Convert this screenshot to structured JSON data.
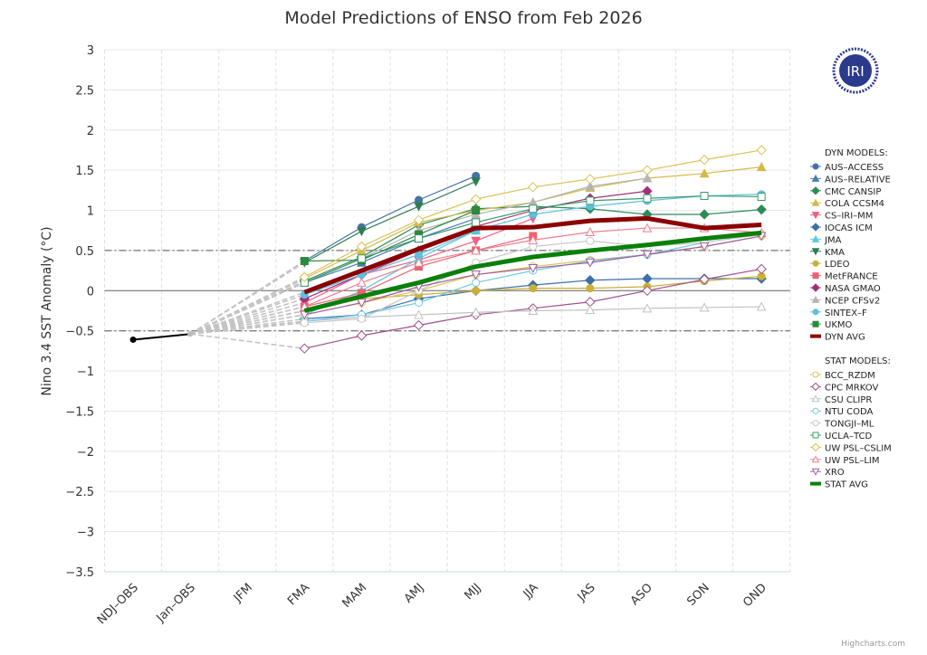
{
  "chart_data": {
    "type": "line",
    "title": "Model Predictions of ENSO from Feb 2026",
    "ylabel": "Nino 3.4 SST Anomaly (°C)",
    "xlabel": "",
    "ylim": [
      -3.5,
      3
    ],
    "yticks": [
      3,
      2.5,
      2,
      1.5,
      1,
      0.5,
      0,
      -0.5,
      -1,
      -1.5,
      -2,
      -2.5,
      -3,
      -3.5
    ],
    "ytick_labels": [
      "3",
      "2.5",
      "2",
      "1.5",
      "1",
      "0.5",
      "0",
      "−0.5",
      "−1",
      "−1.5",
      "−2",
      "−2.5",
      "−3",
      "−3.5"
    ],
    "categories": [
      "NDJ–OBS",
      "Jan–OBS",
      "JFM",
      "FMA",
      "MAM",
      "AMJ",
      "MJJ",
      "JJA",
      "JAS",
      "ASO",
      "SON",
      "OND"
    ],
    "reference_lines": [
      0.5,
      -0.5
    ],
    "grid": true,
    "legend_position": "right",
    "observed": {
      "values": [
        -0.61,
        -0.54
      ],
      "color": "#000000"
    },
    "dyn_header": "DYN MODELS:",
    "stat_header": "STAT MODELS:",
    "dyn_series": [
      {
        "name": "AUS–ACCESS",
        "color": "#4572a7",
        "marker": "circle",
        "filled": true,
        "values": [
          0.37,
          0.79,
          1.13,
          1.43
        ]
      },
      {
        "name": "AUS–RELATIVE",
        "color": "#4a7ab5",
        "marker": "triangle",
        "filled": true,
        "values": [
          0.1,
          0.35,
          0.65,
          0.9
        ]
      },
      {
        "name": "CMC CANSIP",
        "color": "#2e8b57",
        "marker": "diamond",
        "filled": true,
        "values": [
          0.12,
          0.42,
          0.82,
          1.02,
          1.05,
          1.02,
          0.95,
          0.95,
          1.01
        ]
      },
      {
        "name": "COLA CCSM4",
        "color": "#d4b94a",
        "marker": "triangle",
        "filled": true,
        "values": [
          0.15,
          0.5,
          0.85,
          1.0,
          1.1,
          1.28,
          1.4,
          1.46,
          1.54
        ]
      },
      {
        "name": "CS–IRI–MM",
        "color": "#f15c80",
        "marker": "triangle-down",
        "filled": true,
        "values": [
          -0.15,
          0.2,
          0.38,
          0.62,
          0.9
        ]
      },
      {
        "name": "IOCAS ICM",
        "color": "#3d6fa8",
        "marker": "diamond",
        "filled": true,
        "values": [
          -0.35,
          -0.3,
          -0.1,
          0.0,
          0.07,
          0.13,
          0.15,
          0.15,
          0.15
        ]
      },
      {
        "name": "JMA",
        "color": "#5bc8e0",
        "marker": "triangle",
        "filled": true,
        "values": [
          -0.3,
          0.0,
          0.4,
          0.75
        ]
      },
      {
        "name": "KMA",
        "color": "#2e7d4f",
        "marker": "triangle-down",
        "filled": true,
        "values": [
          0.35,
          0.74,
          1.05,
          1.36
        ]
      },
      {
        "name": "LDEO",
        "color": "#c9b037",
        "marker": "circle",
        "filled": true,
        "values": [
          -0.25,
          -0.1,
          -0.05,
          0.0,
          0.03,
          0.03,
          0.05,
          0.12,
          0.18
        ]
      },
      {
        "name": "MetFRANCE",
        "color": "#e8636f",
        "marker": "square",
        "filled": true,
        "values": [
          -0.2,
          -0.03,
          0.3,
          0.5,
          0.68
        ]
      },
      {
        "name": "NASA GMAO",
        "color": "#a3317a",
        "marker": "diamond",
        "filled": true,
        "values": [
          -0.1,
          0.2,
          0.5,
          0.8,
          1.0,
          1.15,
          1.24
        ]
      },
      {
        "name": "NCEP CFSv2",
        "color": "#b5b5b5",
        "marker": "triangle",
        "filled": true,
        "values": [
          0.1,
          0.4,
          0.75,
          0.95,
          1.1,
          1.3,
          1.4
        ]
      },
      {
        "name": "SINTEX–F",
        "color": "#5bc0de",
        "marker": "circle",
        "filled": true,
        "values": [
          -0.05,
          0.2,
          0.45,
          0.75,
          0.95,
          1.05,
          1.12,
          1.18,
          1.2
        ]
      },
      {
        "name": "UKMO",
        "color": "#2b8a3e",
        "marker": "square",
        "filled": true,
        "values": [
          0.37,
          0.38,
          0.7,
          1.0
        ]
      },
      {
        "name": "DYN AVG",
        "color": "#8b0000",
        "marker": "none",
        "avg": true,
        "values": [
          -0.02,
          0.25,
          0.52,
          0.78,
          0.79,
          0.87,
          0.9,
          0.78,
          0.82
        ]
      }
    ],
    "stat_series": [
      {
        "name": "BCC_RZDM",
        "color": "#d9c25a",
        "marker": "circle",
        "filled": false,
        "values": [
          -0.3,
          -0.15,
          0.0,
          0.2,
          0.3,
          0.38,
          0.45,
          0.55,
          0.68
        ]
      },
      {
        "name": "CPC MRKOV",
        "color": "#a3508a",
        "marker": "diamond",
        "filled": false,
        "values": [
          -0.72,
          -0.56,
          -0.43,
          -0.3,
          -0.22,
          -0.14,
          0.0,
          0.14,
          0.27
        ]
      },
      {
        "name": "CSU CLIPR",
        "color": "#c0c0c0",
        "marker": "triangle",
        "filled": false,
        "values": [
          -0.38,
          -0.33,
          -0.3,
          -0.27,
          -0.25,
          -0.24,
          -0.22,
          -0.21,
          -0.2
        ]
      },
      {
        "name": "NTU CODA",
        "color": "#6fcbe6",
        "marker": "circle",
        "filled": false,
        "values": [
          -0.38,
          -0.3,
          -0.15,
          0.1,
          0.25,
          0.37,
          0.45,
          0.6,
          0.7
        ]
      },
      {
        "name": "TONGJI–ML",
        "color": "#c8c8c8",
        "marker": "circle",
        "filled": false,
        "values": [
          -0.4,
          -0.35,
          0.0,
          0.35,
          0.55,
          0.62,
          0.55,
          0.6,
          0.7
        ]
      },
      {
        "name": "UCLA–TCD",
        "color": "#3a9a6a",
        "marker": "square",
        "filled": false,
        "values": [
          0.1,
          0.4,
          0.65,
          0.85,
          1.02,
          1.12,
          1.15,
          1.18,
          1.17
        ]
      },
      {
        "name": "UW PSL–CSLIM",
        "color": "#d9c25a",
        "marker": "diamond",
        "filled": false,
        "values": [
          0.17,
          0.55,
          0.88,
          1.14,
          1.29,
          1.39,
          1.5,
          1.63,
          1.75
        ]
      },
      {
        "name": "UW PSL–LIM",
        "color": "#ef7f8e",
        "marker": "triangle",
        "filled": false,
        "values": [
          -0.2,
          0.1,
          0.35,
          0.5,
          0.63,
          0.73,
          0.78,
          0.78,
          0.72
        ]
      },
      {
        "name": "XRO",
        "color": "#a35c9e",
        "marker": "triangle-down",
        "filled": false,
        "values": [
          -0.3,
          -0.15,
          0.05,
          0.2,
          0.28,
          0.35,
          0.45,
          0.55,
          0.68
        ]
      },
      {
        "name": "STAT AVG",
        "color": "#0a7f0a",
        "marker": "none",
        "avg": true,
        "values": [
          -0.25,
          -0.07,
          0.1,
          0.3,
          0.42,
          0.5,
          0.57,
          0.65,
          0.72
        ]
      }
    ]
  },
  "logo": {
    "text": "IRI",
    "color": "#2b3a8c"
  },
  "credits": "Highcharts.com"
}
